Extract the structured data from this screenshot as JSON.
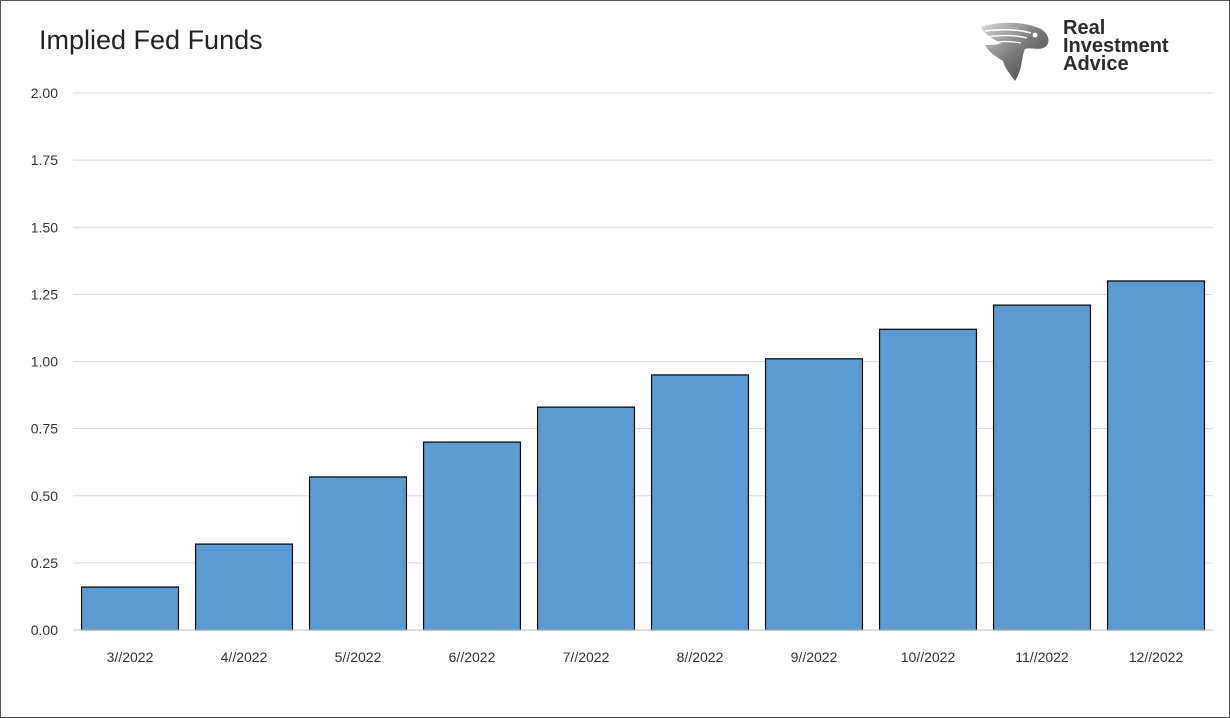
{
  "chart_data": {
    "type": "bar",
    "title": "Implied Fed Funds",
    "xlabel": "",
    "ylabel": "",
    "categories": [
      "3//2022",
      "4//2022",
      "5//2022",
      "6//2022",
      "7//2022",
      "8//2022",
      "9//2022",
      "10//2022",
      "11//2022",
      "12//2022"
    ],
    "values": [
      0.16,
      0.32,
      0.57,
      0.7,
      0.83,
      0.95,
      1.01,
      1.12,
      1.21,
      1.3
    ],
    "ylim": [
      0,
      2.0
    ],
    "yticks": [
      "0.00",
      "0.25",
      "0.50",
      "0.75",
      "1.00",
      "1.25",
      "1.50",
      "1.75",
      "2.00"
    ],
    "grid": true,
    "legend": "none",
    "bar_color": "#5b9bd5",
    "bar_edge_color": "#000000"
  },
  "logo": {
    "lines": [
      "Real",
      "Investment",
      "Advice"
    ],
    "icon": "eagle-head-icon"
  }
}
